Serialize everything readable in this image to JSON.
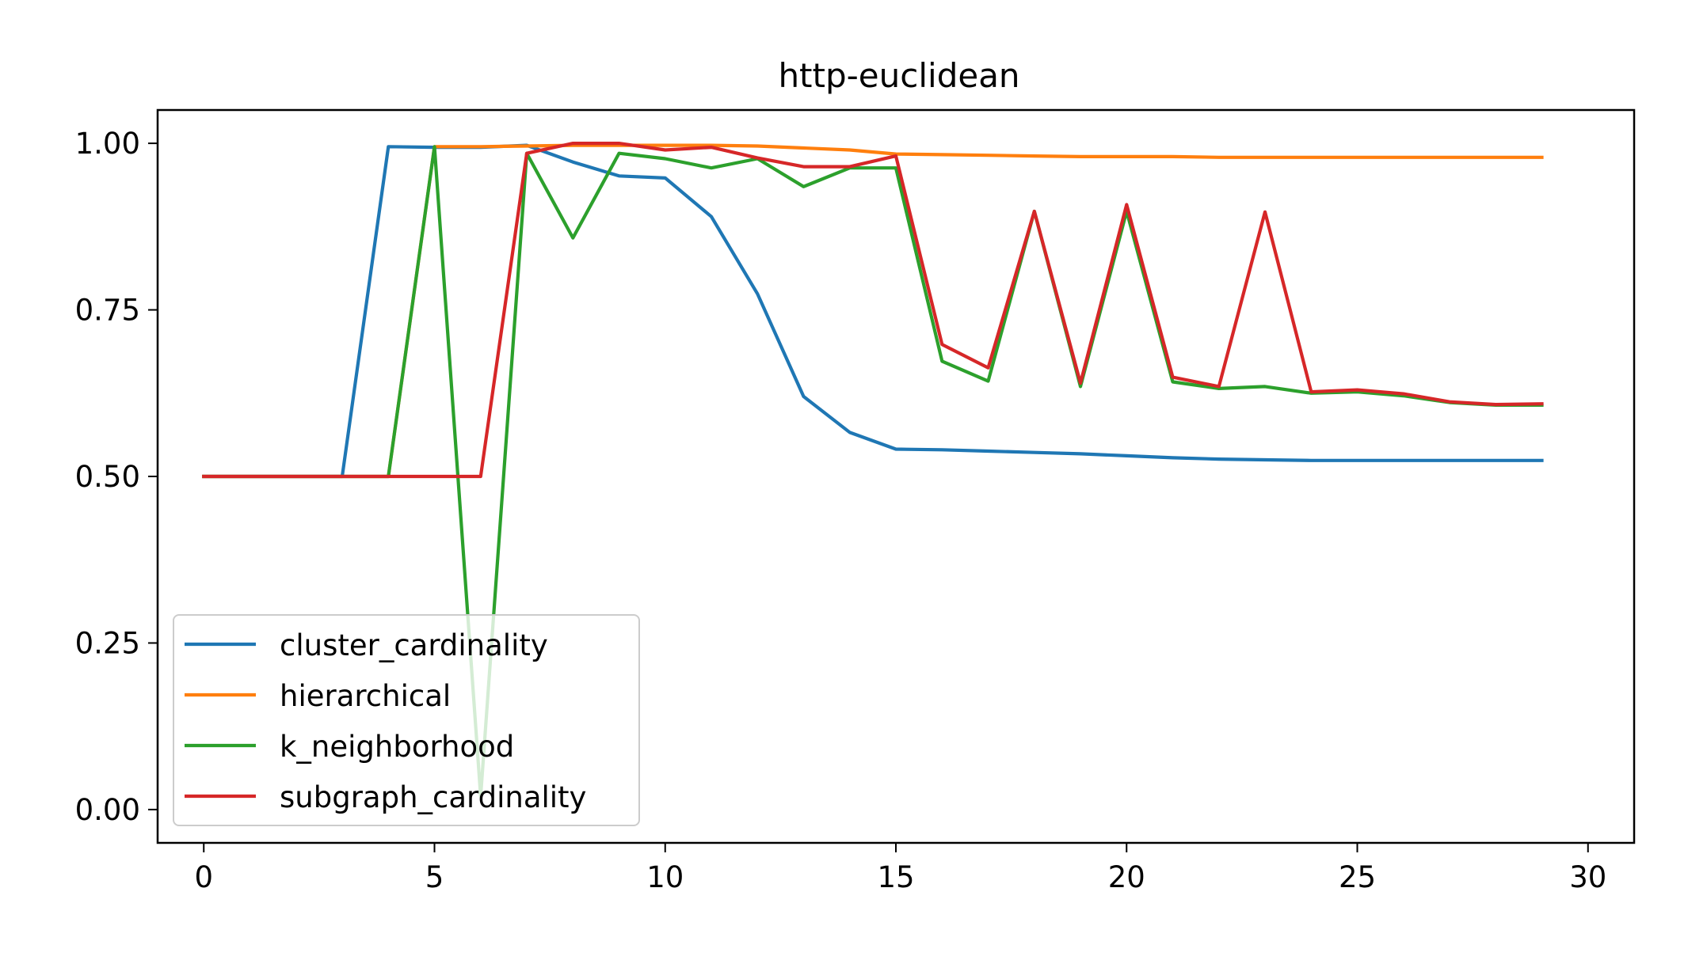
{
  "chart_data": {
    "type": "line",
    "title": "http-euclidean",
    "xlabel": "",
    "ylabel": "",
    "xlim": [
      -1,
      31
    ],
    "ylim": [
      -0.05,
      1.05
    ],
    "xticks": [
      0,
      5,
      10,
      15,
      20,
      25,
      30
    ],
    "xtick_labels": [
      "0",
      "5",
      "10",
      "15",
      "20",
      "25",
      "30"
    ],
    "yticks": [
      0.0,
      0.25,
      0.5,
      0.75,
      1.0
    ],
    "ytick_labels": [
      "0.00",
      "0.25",
      "0.50",
      "0.75",
      "1.00"
    ],
    "grid": false,
    "legend_position": "lower-left",
    "x": [
      0,
      1,
      2,
      3,
      4,
      5,
      6,
      7,
      8,
      9,
      10,
      11,
      12,
      13,
      14,
      15,
      16,
      17,
      18,
      19,
      20,
      21,
      22,
      23,
      24,
      25,
      26,
      27,
      28,
      29
    ],
    "series": [
      {
        "name": "cluster_cardinality",
        "color": "#1f77b4",
        "values": [
          0.5,
          0.5,
          0.5,
          0.5,
          0.995,
          0.994,
          0.994,
          0.997,
          0.972,
          0.951,
          0.948,
          0.89,
          0.774,
          0.62,
          0.566,
          0.541,
          0.54,
          0.538,
          0.536,
          0.534,
          0.531,
          0.528,
          0.526,
          0.525,
          0.524,
          0.524,
          0.524,
          0.524,
          0.524,
          0.524
        ]
      },
      {
        "name": "hierarchical",
        "color": "#ff7f0e",
        "values": [
          0.5,
          0.5,
          0.5,
          0.5,
          0.5,
          0.995,
          0.995,
          0.996,
          0.997,
          0.997,
          0.997,
          0.997,
          0.996,
          0.993,
          0.99,
          0.984,
          0.983,
          0.982,
          0.981,
          0.98,
          0.98,
          0.98,
          0.979,
          0.979,
          0.979,
          0.979,
          0.979,
          0.979,
          0.979,
          0.979
        ]
      },
      {
        "name": "k_neighborhood",
        "color": "#2ca02c",
        "values": [
          0.5,
          0.5,
          0.5,
          0.5,
          0.5,
          0.995,
          0.02,
          0.985,
          0.858,
          0.985,
          0.977,
          0.963,
          0.977,
          0.935,
          0.963,
          0.963,
          0.673,
          0.643,
          0.898,
          0.635,
          0.898,
          0.642,
          0.632,
          0.635,
          0.625,
          0.627,
          0.621,
          0.611,
          0.607,
          0.607
        ]
      },
      {
        "name": "subgraph_cardinality",
        "color": "#d62728",
        "values": [
          0.5,
          0.5,
          0.5,
          0.5,
          0.5,
          0.5,
          0.5,
          0.985,
          1.0,
          1.0,
          0.99,
          0.994,
          0.978,
          0.965,
          0.965,
          0.981,
          0.698,
          0.663,
          0.898,
          0.64,
          0.908,
          0.649,
          0.635,
          0.897,
          0.627,
          0.63,
          0.624,
          0.612,
          0.608,
          0.609
        ]
      }
    ]
  }
}
